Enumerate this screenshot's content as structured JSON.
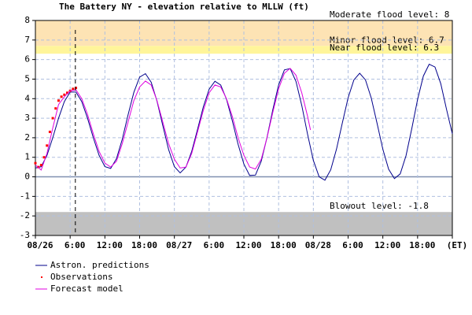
{
  "chart_data": {
    "type": "line",
    "title": "The Battery NY  -  elevation relative to MLLW (ft)",
    "xlim": [
      0,
      72
    ],
    "ylim": [
      -3,
      8
    ],
    "yticks": [
      -3,
      -2,
      -1,
      0,
      1,
      2,
      3,
      4,
      5,
      6,
      7,
      8
    ],
    "xticks": [
      {
        "value": 0,
        "label": "08/26"
      },
      {
        "value": 6,
        "label": "6:00"
      },
      {
        "value": 12,
        "label": "12:00"
      },
      {
        "value": 18,
        "label": "18:00"
      },
      {
        "value": 24,
        "label": "08/27"
      },
      {
        "value": 30,
        "label": "6:00"
      },
      {
        "value": 36,
        "label": "12:00"
      },
      {
        "value": 42,
        "label": "18:00"
      },
      {
        "value": 48,
        "label": "08/28"
      },
      {
        "value": 54,
        "label": "6:00"
      },
      {
        "value": 60,
        "label": "12:00"
      },
      {
        "value": 66,
        "label": "18:00"
      },
      {
        "value": 72,
        "label": "(ET)"
      }
    ],
    "grid": true,
    "now": 6.9,
    "thresholds": [
      {
        "label": "Moderate flood level: 8",
        "value": 8
      },
      {
        "label": "Minor flood level: 6.7",
        "value": 6.7,
        "color": "#fde3b4"
      },
      {
        "label": "Near flood level: 6.3",
        "value": 6.3,
        "color": "#fff59a"
      },
      {
        "label": "Blowout level: -1.8",
        "value": -1.8,
        "color": "#c0c0c0"
      }
    ],
    "series": [
      {
        "name": "Astron. predictions",
        "color": "#00008b",
        "style": "line",
        "x": [
          0,
          1,
          2,
          3,
          4,
          5,
          6,
          7,
          8,
          9,
          10,
          11,
          12,
          13,
          14,
          15,
          16,
          17,
          18,
          19,
          20,
          21,
          22,
          23,
          24,
          25,
          26,
          27,
          28,
          29,
          30,
          31,
          32,
          33,
          34,
          35,
          36,
          37,
          38,
          39,
          40,
          41,
          42,
          43,
          44,
          45,
          46,
          47,
          48,
          49,
          50,
          51,
          52,
          53,
          54,
          55,
          56,
          57,
          58,
          59,
          60,
          61,
          62,
          63,
          64,
          65,
          66,
          67,
          68,
          69,
          70,
          71,
          72
        ],
        "values": [
          0.45,
          0.52,
          1.1,
          2.0,
          3.0,
          3.85,
          4.34,
          4.34,
          3.85,
          3.0,
          2.0,
          1.1,
          0.52,
          0.43,
          0.93,
          1.92,
          3.17,
          4.32,
          5.1,
          5.28,
          4.84,
          3.87,
          2.62,
          1.4,
          0.52,
          0.2,
          0.5,
          1.31,
          2.43,
          3.58,
          4.48,
          4.89,
          4.7,
          3.97,
          2.88,
          1.67,
          0.66,
          0.07,
          0.09,
          0.8,
          2.02,
          3.44,
          4.7,
          5.47,
          5.54,
          4.88,
          3.65,
          2.18,
          0.84,
          0.0,
          -0.17,
          0.36,
          1.42,
          2.75,
          4.04,
          4.96,
          5.3,
          4.96,
          4.03,
          2.74,
          1.41,
          0.39,
          -0.09,
          0.15,
          1.08,
          2.47,
          3.96,
          5.16,
          5.76,
          5.62,
          4.77,
          3.45,
          2.2
        ]
      },
      {
        "name": "Observations",
        "color": "#ff0000",
        "style": "dots",
        "x": [
          0,
          0.5,
          1,
          1.5,
          2,
          2.5,
          3,
          3.5,
          4,
          4.5,
          5,
          5.5,
          6,
          6.5,
          7
        ],
        "values": [
          0.7,
          0.5,
          0.6,
          1.0,
          1.6,
          2.3,
          3.0,
          3.5,
          3.9,
          4.1,
          4.2,
          4.3,
          4.4,
          4.5,
          4.55
        ]
      },
      {
        "name": "Forecast model",
        "color": "#e000e0",
        "style": "line",
        "x": [
          0,
          1,
          2,
          3,
          4,
          5,
          6,
          7,
          8,
          9,
          10,
          11,
          12,
          13,
          14,
          15,
          16,
          17,
          18,
          19,
          20,
          21,
          22,
          23,
          24,
          25,
          26,
          27,
          28,
          29,
          30,
          31,
          32,
          33,
          34,
          35,
          36,
          37,
          38,
          39,
          40,
          41,
          42,
          43,
          44,
          45,
          46,
          47,
          47.5
        ],
        "values": [
          0.6,
          0.35,
          1.2,
          2.5,
          3.7,
          4.1,
          4.4,
          4.45,
          4.0,
          3.2,
          2.2,
          1.3,
          0.7,
          0.5,
          0.8,
          1.7,
          2.8,
          3.9,
          4.6,
          4.9,
          4.7,
          3.9,
          2.8,
          1.7,
          0.9,
          0.45,
          0.5,
          1.2,
          2.3,
          3.4,
          4.3,
          4.7,
          4.6,
          4.0,
          3.1,
          2.0,
          1.1,
          0.5,
          0.4,
          0.9,
          2.0,
          3.3,
          4.5,
          5.3,
          5.55,
          5.2,
          4.3,
          3.1,
          2.4
        ]
      }
    ]
  }
}
